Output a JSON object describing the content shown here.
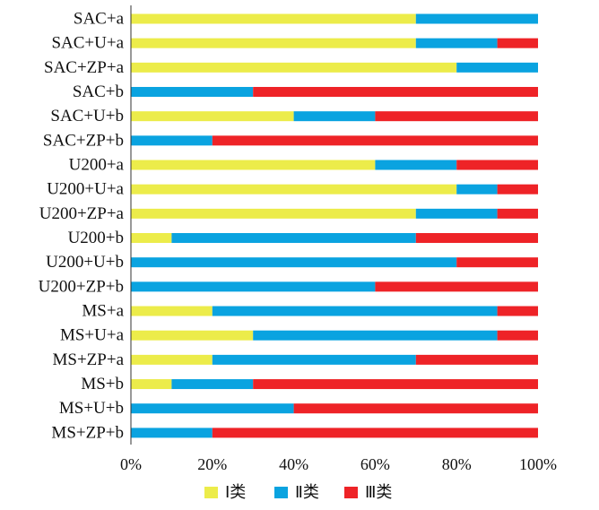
{
  "chart_data": {
    "type": "bar",
    "orientation": "horizontal",
    "stacked": true,
    "percent": true,
    "categories": [
      "SAC+a",
      "SAC+U+a",
      "SAC+ZP+a",
      "SAC+b",
      "SAC+U+b",
      "SAC+ZP+b",
      "U200+a",
      "U200+U+a",
      "U200+ZP+a",
      "U200+b",
      "U200+U+b",
      "U200+ZP+b",
      "MS+a",
      "MS+U+a",
      "MS+ZP+a",
      "MS+b",
      "MS+U+b",
      "MS+ZP+b"
    ],
    "series": [
      {
        "name": "Ⅰ类",
        "color": "#ecec4a",
        "values": [
          70,
          70,
          80,
          0,
          40,
          0,
          60,
          80,
          70,
          10,
          0,
          0,
          20,
          30,
          20,
          10,
          0,
          0
        ]
      },
      {
        "name": "Ⅱ类",
        "color": "#0aa3e0",
        "values": [
          30,
          20,
          20,
          30,
          20,
          20,
          20,
          10,
          20,
          60,
          80,
          60,
          70,
          60,
          50,
          20,
          40,
          20
        ]
      },
      {
        "name": "Ⅲ类",
        "color": "#ee2327",
        "values": [
          0,
          10,
          0,
          70,
          40,
          80,
          20,
          10,
          10,
          30,
          20,
          40,
          10,
          10,
          30,
          70,
          60,
          80
        ]
      }
    ],
    "xticks": [
      "0%",
      "20%",
      "40%",
      "60%",
      "80%",
      "100%"
    ],
    "xlim": [
      0,
      100
    ],
    "grid": false,
    "legend": "bottom-center"
  }
}
